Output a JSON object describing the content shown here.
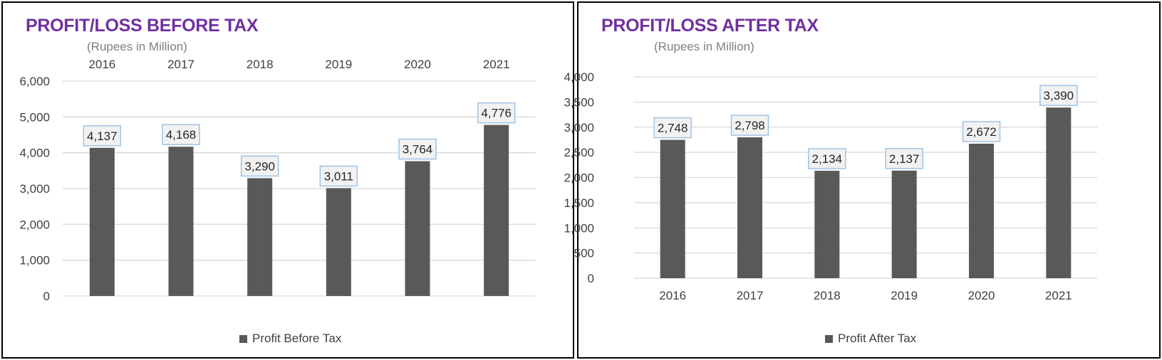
{
  "colors": {
    "title": "#7030a0",
    "bar": "#595959",
    "grid": "#d9d9d9",
    "axis_text": "#404040",
    "label_border": "#9dc3e6",
    "label_fill": "#f2f2f2"
  },
  "chart_data": [
    {
      "type": "bar",
      "title": "PROFIT/LOSS BEFORE TAX",
      "subtitle": "(Rupees in Million)",
      "categories": [
        "2016",
        "2017",
        "2018",
        "2019",
        "2020",
        "2021"
      ],
      "series": [
        {
          "name": "Profit Before Tax",
          "values": [
            4137,
            4168,
            3290,
            3011,
            3764,
            4776
          ]
        }
      ],
      "data_labels": [
        "4,137",
        "4,168",
        "3,290",
        "3,011",
        "3,764",
        "4,776"
      ],
      "yticks": [
        "0",
        "1,000",
        "2,000",
        "3,000",
        "4,000",
        "5,000",
        "6,000"
      ],
      "ylim": [
        0,
        6000
      ],
      "x_axis_position": "top",
      "grid": true,
      "legend_position": "bottom"
    },
    {
      "type": "bar",
      "title": "PROFIT/LOSS AFTER TAX",
      "subtitle": "(Rupees in Million)",
      "categories": [
        "2016",
        "2017",
        "2018",
        "2019",
        "2020",
        "2021"
      ],
      "series": [
        {
          "name": "Profit After Tax",
          "values": [
            2748,
            2798,
            2134,
            2137,
            2672,
            3390
          ]
        }
      ],
      "data_labels": [
        "2,748",
        "2,798",
        "2,134",
        "2,137",
        "2,672",
        "3,390"
      ],
      "yticks": [
        "0",
        "500",
        "1,000",
        "1,500",
        "2,000",
        "2,500",
        "3,000",
        "3,500",
        "4,000"
      ],
      "ylim": [
        0,
        4000
      ],
      "x_axis_position": "bottom",
      "grid": true,
      "legend_position": "bottom"
    }
  ]
}
